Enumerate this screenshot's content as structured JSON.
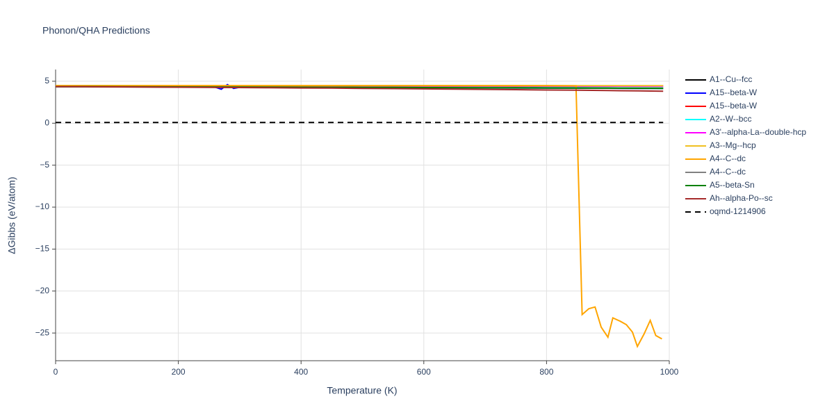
{
  "chart_data": {
    "type": "line",
    "title": "Phonon/QHA Predictions",
    "x_label": "Temperature (K)",
    "y_label": "ΔGibbs (eV/atom)",
    "x": [
      0,
      50,
      100,
      150,
      200,
      250,
      300,
      350,
      400,
      450,
      500,
      550,
      600,
      650,
      700,
      750,
      800,
      850,
      900,
      950,
      990
    ],
    "xlim": [
      0,
      1000
    ],
    "xticks": [
      0,
      200,
      400,
      600,
      800,
      1000
    ],
    "ylim": [
      -28.3,
      6.4
    ],
    "yticks": [
      {
        "value": -25,
        "label": "−25"
      },
      {
        "value": -20,
        "label": "−20"
      },
      {
        "value": -15,
        "label": "−15"
      },
      {
        "value": -10,
        "label": "−10"
      },
      {
        "value": -5,
        "label": "−5"
      },
      0,
      5
    ],
    "grid": true,
    "legend": "right",
    "series": [
      {
        "name": "A1--Cu--fcc",
        "color": "#000000",
        "values": [
          4.35,
          4.35,
          4.34,
          4.34,
          4.33,
          4.33,
          4.32,
          4.31,
          4.3,
          4.3,
          4.29,
          4.28,
          4.27,
          4.26,
          4.25,
          4.24,
          4.23,
          4.22,
          4.21,
          4.2,
          4.2
        ]
      },
      {
        "name": "A15--beta-W",
        "color": "#0000ff",
        "x": [
          0,
          50,
          100,
          150,
          200,
          250,
          260,
          270,
          280,
          290,
          300,
          350,
          400,
          450,
          500,
          550,
          600,
          650,
          700,
          750,
          800,
          850,
          900,
          950,
          990
        ],
        "values": [
          4.35,
          4.35,
          4.34,
          4.33,
          4.32,
          4.31,
          4.3,
          4.05,
          4.6,
          4.15,
          4.28,
          4.27,
          4.26,
          4.25,
          4.24,
          4.23,
          4.22,
          4.21,
          4.2,
          4.19,
          4.18,
          4.17,
          4.16,
          4.15,
          4.14
        ]
      },
      {
        "name": "A15--beta-W",
        "color": "#ff0000",
        "values": [
          4.4,
          4.4,
          4.4,
          4.4,
          4.4,
          4.4,
          4.4,
          4.4,
          4.41,
          4.41,
          4.41,
          4.41,
          4.42,
          4.42,
          4.42,
          4.43,
          4.43,
          4.43,
          4.44,
          4.44,
          4.45
        ]
      },
      {
        "name": "A2--W--bcc",
        "color": "#00ffff",
        "values": [
          4.38,
          4.38,
          4.37,
          4.36,
          4.36,
          4.35,
          4.34,
          4.33,
          4.32,
          4.31,
          4.3,
          4.29,
          4.28,
          4.27,
          4.26,
          4.24,
          4.23,
          4.21,
          4.2,
          4.18,
          4.17
        ]
      },
      {
        "name": "A3'--alpha-La--double-hcp",
        "color": "#ff00ff",
        "values": [
          4.42,
          4.42,
          4.42,
          4.42,
          4.42,
          4.42,
          4.42,
          4.42,
          4.42,
          4.42,
          4.42,
          4.42,
          4.42,
          4.42,
          4.42,
          4.42,
          4.42,
          4.42,
          4.42,
          4.42,
          4.42
        ]
      },
      {
        "name": "A3--Mg--hcp",
        "color": "#f0c020",
        "values": [
          4.47,
          4.47,
          4.47,
          4.47,
          4.47,
          4.47,
          4.47,
          4.47,
          4.47,
          4.47,
          4.47,
          4.47,
          4.47,
          4.47,
          4.47,
          4.47,
          4.47,
          4.47,
          4.47,
          4.47,
          4.47
        ]
      },
      {
        "name": "A4--C--dc",
        "color": "#ffa500",
        "x": [
          0,
          100,
          200,
          300,
          400,
          500,
          600,
          700,
          800,
          848,
          858,
          869,
          879,
          889,
          900,
          908,
          920,
          930,
          940,
          948,
          959,
          969,
          978,
          988
        ],
        "values": [
          4.47,
          4.47,
          4.47,
          4.47,
          4.47,
          4.47,
          4.47,
          4.47,
          4.47,
          4.45,
          -22.8,
          -22.1,
          -21.9,
          -24.3,
          -25.5,
          -23.2,
          -23.6,
          -24,
          -24.9,
          -26.6,
          -25.1,
          -23.5,
          -25.3,
          -25.7
        ]
      },
      {
        "name": "A4--C--dc",
        "color": "#808080",
        "values": [
          4.33,
          4.33,
          4.32,
          4.31,
          4.3,
          4.29,
          4.28,
          4.27,
          4.26,
          4.25,
          4.24,
          4.23,
          4.22,
          4.21,
          4.2,
          4.19,
          4.18,
          4.17,
          4.16,
          4.15,
          4.14
        ]
      },
      {
        "name": "A5--beta-Sn",
        "color": "#008000",
        "values": [
          4.36,
          4.36,
          4.35,
          4.34,
          4.33,
          4.32,
          4.31,
          4.3,
          4.29,
          4.28,
          4.27,
          4.26,
          4.25,
          4.24,
          4.23,
          4.22,
          4.2,
          4.19,
          4.17,
          4.16,
          4.15
        ]
      },
      {
        "name": "Ah--alpha-Po--sc",
        "color": "#a52a2a",
        "values": [
          4.36,
          4.35,
          4.33,
          4.31,
          4.29,
          4.27,
          4.25,
          4.22,
          4.2,
          4.18,
          4.15,
          4.12,
          4.09,
          4.06,
          4.03,
          4.0,
          3.96,
          3.93,
          3.89,
          3.85,
          3.82
        ]
      },
      {
        "name": "oqmd-1214906",
        "color": "#000000",
        "dash": "dash",
        "x": [
          0,
          990
        ],
        "values": [
          0.08,
          0.08
        ]
      }
    ]
  }
}
